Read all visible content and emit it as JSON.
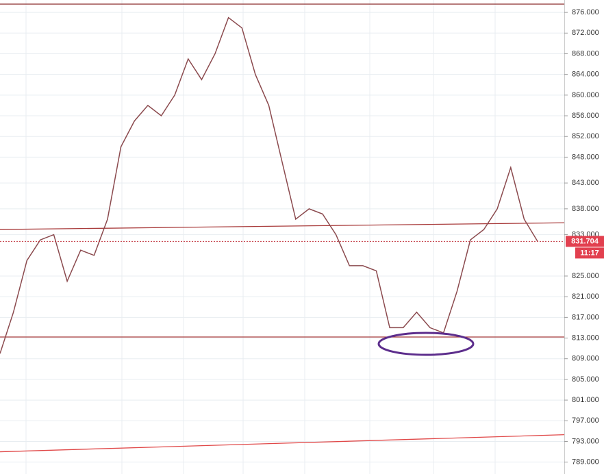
{
  "chart_data": {
    "type": "line",
    "values": [
      810,
      818,
      828,
      832,
      833,
      824,
      830,
      829,
      836,
      850,
      855,
      858,
      856,
      860,
      867,
      863,
      868,
      875,
      873,
      864,
      858,
      847,
      836,
      838,
      837,
      833,
      827,
      827,
      826,
      815,
      815,
      818,
      815,
      814,
      822,
      832,
      834,
      838,
      846,
      836,
      831.704
    ],
    "color": "#8b4a4e",
    "ylim": [
      786.7,
      878.4
    ],
    "yticks": [
      {
        "value": 876,
        "label": "876.000"
      },
      {
        "value": 872,
        "label": "872.000"
      },
      {
        "value": 868,
        "label": "868.000"
      },
      {
        "value": 864,
        "label": "864.000"
      },
      {
        "value": 860,
        "label": "860.000"
      },
      {
        "value": 856,
        "label": "856.000"
      },
      {
        "value": 852,
        "label": "852.000"
      },
      {
        "value": 848,
        "label": "848.000"
      },
      {
        "value": 843,
        "label": "843.000"
      },
      {
        "value": 838,
        "label": "838.000"
      },
      {
        "value": 833,
        "label": "833.000"
      },
      {
        "value": 825,
        "label": "825.000"
      },
      {
        "value": 821,
        "label": "821.000"
      },
      {
        "value": 817,
        "label": "817.000"
      },
      {
        "value": 813,
        "label": "813.000"
      },
      {
        "value": 809,
        "label": "809.000"
      },
      {
        "value": 805,
        "label": "805.000"
      },
      {
        "value": 801,
        "label": "801.000"
      },
      {
        "value": 797,
        "label": "797.000"
      },
      {
        "value": 793,
        "label": "793.000"
      },
      {
        "value": 789,
        "label": "789.000"
      }
    ],
    "grid": true,
    "lines": [
      {
        "values": [
          877.6,
          877.6
        ],
        "color": "#8b2a2a"
      },
      {
        "values": [
          834.0,
          835.3
        ],
        "color": "#a83a3a"
      },
      {
        "values": [
          813.2,
          813.2
        ],
        "color": "#a83a3a"
      },
      {
        "values": [
          791.0,
          794.3
        ],
        "color": "#e04848"
      }
    ],
    "current_price": 831.704,
    "timer": "11:17"
  }
}
